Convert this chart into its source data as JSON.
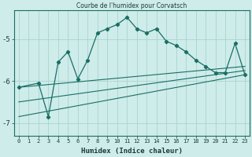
{
  "title": "Courbe de l'humidex pour Corvatsch",
  "xlabel": "Humidex (Indice chaleur)",
  "background_color": "#ceecea",
  "grid_color": "#aad4d0",
  "line_color": "#1a6e64",
  "xlim": [
    -0.5,
    23.5
  ],
  "ylim": [
    -7.3,
    -4.3
  ],
  "yticks": [
    -7,
    -6,
    -5
  ],
  "xticks": [
    0,
    1,
    2,
    3,
    4,
    5,
    6,
    7,
    8,
    9,
    10,
    11,
    12,
    13,
    14,
    15,
    16,
    17,
    18,
    19,
    20,
    21,
    22,
    23
  ],
  "main_x": [
    0,
    2,
    3,
    4,
    5,
    6,
    7,
    8,
    9,
    10,
    11,
    12,
    13,
    14,
    15,
    16,
    17,
    18,
    19,
    20,
    21,
    22,
    23
  ],
  "main_y": [
    -6.15,
    -6.05,
    -6.85,
    -5.55,
    -5.3,
    -5.95,
    -5.5,
    -4.85,
    -4.75,
    -4.65,
    -4.48,
    -4.75,
    -4.85,
    -4.75,
    -5.05,
    -5.15,
    -5.3,
    -5.5,
    -5.65,
    -5.8,
    -5.8,
    -5.1,
    -5.85
  ],
  "line1_x": [
    0,
    23
  ],
  "line1_y": [
    -6.15,
    -5.65
  ],
  "line2_x": [
    0,
    23
  ],
  "line2_y": [
    -6.5,
    -5.75
  ],
  "line3_x": [
    0,
    23
  ],
  "line3_y": [
    -6.85,
    -5.85
  ]
}
